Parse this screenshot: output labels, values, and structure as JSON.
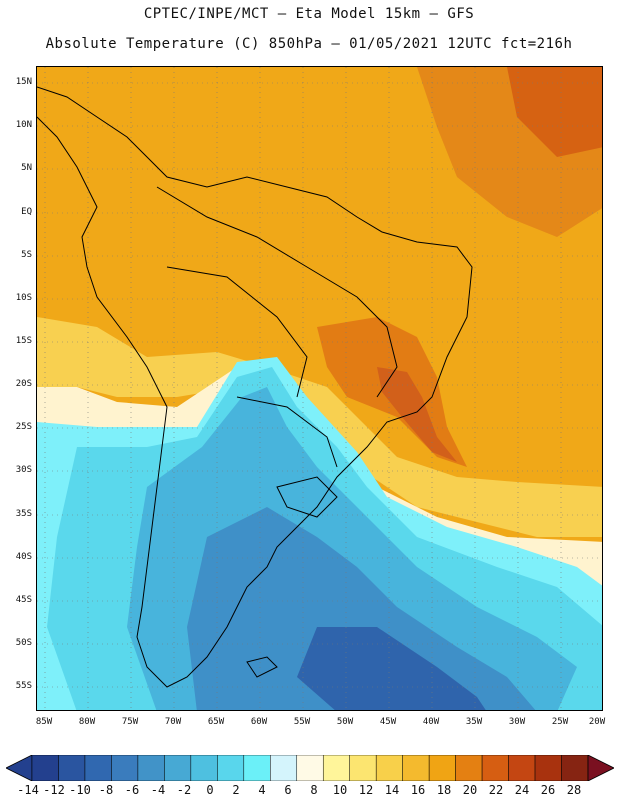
{
  "header": {
    "line1": "CPTEC/INPE/MCT –  Eta Model 15km – GFS",
    "line2": "Absolute Temperature (C) 850hPa – 01/05/2021 12UTC fct=216h"
  },
  "map": {
    "lat_labels": [
      "15N",
      "10N",
      "5N",
      "EQ",
      "5S",
      "10S",
      "15S",
      "20S",
      "25S",
      "30S",
      "35S",
      "40S",
      "45S",
      "50S",
      "55S"
    ],
    "lon_labels": [
      "85W",
      "80W",
      "75W",
      "70W",
      "65W",
      "60W",
      "55W",
      "50W",
      "45W",
      "40W",
      "35W",
      "30W",
      "25W",
      "20W"
    ]
  },
  "colorbar": {
    "ticks": [
      "-14",
      "-12",
      "-10",
      "-8",
      "-6",
      "-4",
      "-2",
      "0",
      "2",
      "4",
      "6",
      "8",
      "10",
      "12",
      "14",
      "16",
      "18",
      "20",
      "22",
      "24",
      "26",
      "28"
    ],
    "colors": [
      "#23408e",
      "#2a55a0",
      "#3068b0",
      "#3a7cbd",
      "#4193c8",
      "#47a9d4",
      "#4ec0e0",
      "#59d6ec",
      "#6bf0f8",
      "#d4f4fc",
      "#fffae6",
      "#fff59a",
      "#fce570",
      "#f8d04a",
      "#f4ba2e",
      "#f0a414",
      "#e48012",
      "#d65e12",
      "#c44612",
      "#a8320e",
      "#862412"
    ]
  },
  "legend_colors": {
    "deep_blue": "#2a4f98",
    "mid_blue": "#3f8cc4",
    "cyan": "#5ee0f0",
    "light_cyan": "#9ff5fb",
    "pale": "#fff6d8",
    "yellow": "#ffe888",
    "orange": "#f2a818",
    "dark_orange": "#e07c14",
    "red_orange": "#cc5412"
  }
}
